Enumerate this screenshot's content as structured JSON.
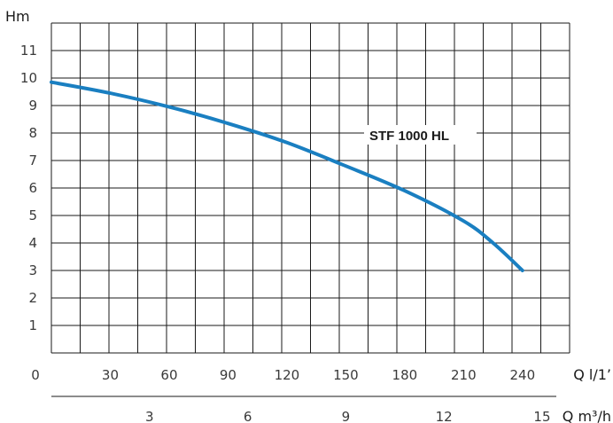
{
  "chart_data": {
    "type": "line",
    "title": "",
    "ylabel": "Hm",
    "xlabel": "Q l/1’",
    "xlabel_secondary": "Q m³/h",
    "ylim": [
      0,
      12
    ],
    "xlim": [
      0,
      264
    ],
    "y_ticks": [
      1,
      2,
      3,
      4,
      5,
      6,
      7,
      8,
      9,
      10,
      11
    ],
    "x_ticks": [
      0,
      30,
      60,
      90,
      120,
      150,
      180,
      210,
      240
    ],
    "x2_ticks": [
      3,
      6,
      9,
      12,
      15
    ],
    "grid": true,
    "colors": {
      "series": "#1a7fc1",
      "grid": "#1a1a1a"
    },
    "series": [
      {
        "name": "STF 1000 HL",
        "x": [
          0,
          30,
          60,
          90,
          120,
          150,
          180,
          210,
          225,
          240
        ],
        "y": [
          9.85,
          9.45,
          8.95,
          8.35,
          7.65,
          6.8,
          5.9,
          4.8,
          4.0,
          3.0
        ]
      }
    ]
  }
}
